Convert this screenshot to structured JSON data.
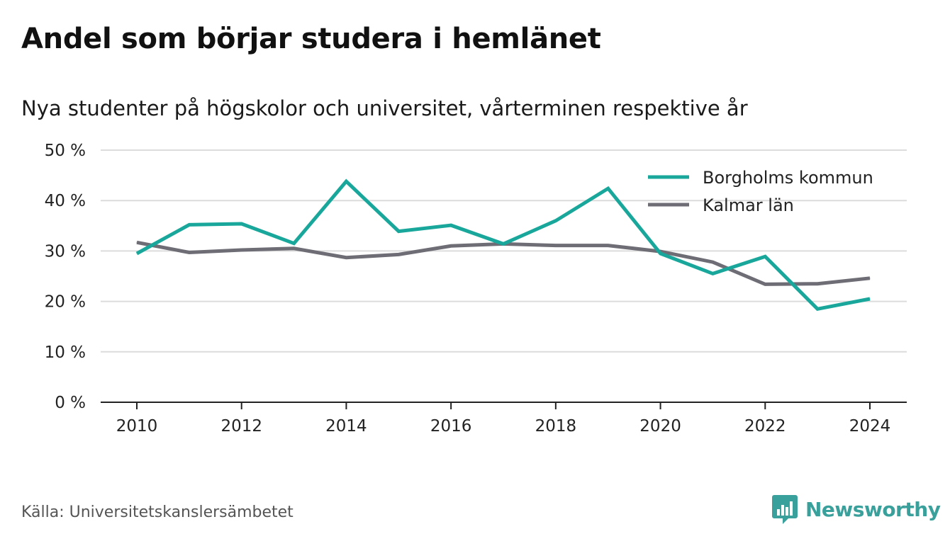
{
  "title": "Andel som börjar studera i hemlänet",
  "subtitle": "Nya studenter på högskolor och universitet, vårterminen respektive år",
  "source": "Källa: Universitetskanslersämbetet",
  "brand": "Newsworthy",
  "colors": {
    "teal": "#1aa79b",
    "gray": "#6e6d75",
    "grid": "#dcdcdc",
    "axis": "#222222",
    "brand": "#3aa09b"
  },
  "chart_data": {
    "type": "line",
    "x": [
      2010,
      2011,
      2012,
      2013,
      2014,
      2015,
      2016,
      2017,
      2018,
      2019,
      2020,
      2021,
      2022,
      2023,
      2024
    ],
    "xticks": [
      2010,
      2012,
      2014,
      2016,
      2018,
      2020,
      2022,
      2024
    ],
    "yticks": [
      0,
      10,
      20,
      30,
      40,
      50
    ],
    "ytick_labels": [
      "0 %",
      "10 %",
      "20 %",
      "30 %",
      "40 %",
      "50 %"
    ],
    "ylim": [
      0,
      50
    ],
    "grid": true,
    "legend_position": "top-right",
    "series": [
      {
        "name": "Borgholms kommun",
        "color": "#1aa79b",
        "values": [
          29.5,
          35.2,
          35.4,
          31.5,
          43.8,
          33.9,
          35.1,
          31.4,
          36.0,
          42.4,
          29.5,
          25.5,
          28.9,
          18.5,
          20.5
        ]
      },
      {
        "name": "Kalmar län",
        "color": "#6e6d75",
        "values": [
          31.7,
          29.7,
          30.2,
          30.5,
          28.7,
          29.3,
          31.0,
          31.4,
          31.1,
          31.1,
          29.9,
          27.8,
          23.4,
          23.5,
          24.6
        ]
      }
    ]
  }
}
